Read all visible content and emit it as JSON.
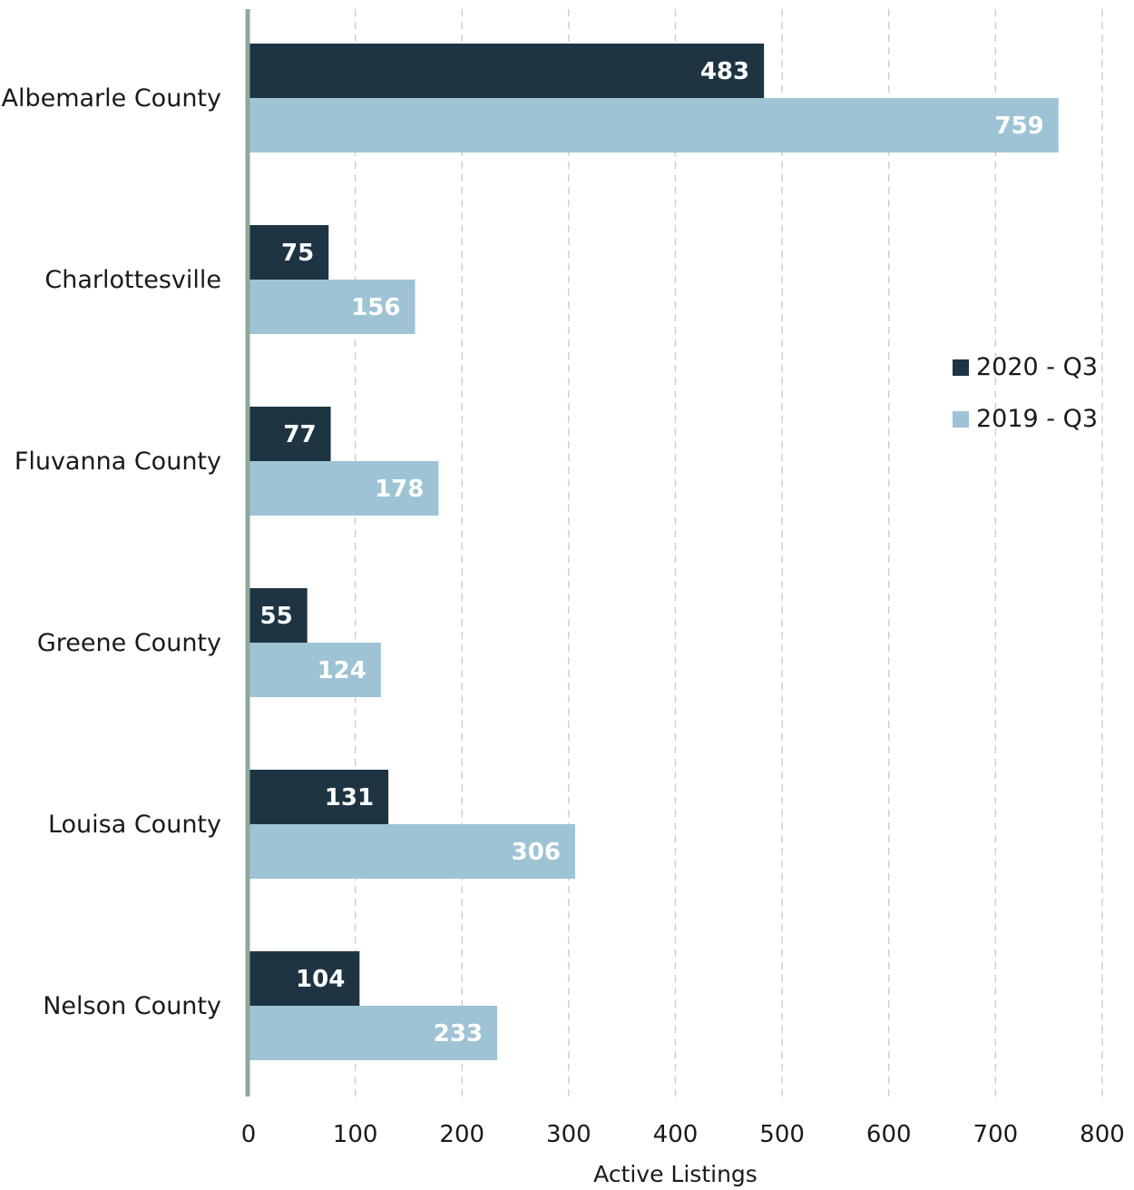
{
  "chart_data": {
    "type": "bar",
    "orientation": "horizontal",
    "categories": [
      "Albemarle County",
      "Charlottesville",
      "Fluvanna County",
      "Greene County",
      "Louisa County",
      "Nelson County"
    ],
    "series": [
      {
        "name": "2020 - Q3",
        "color": "#1e3442",
        "values": [
          483,
          75,
          77,
          55,
          131,
          104
        ]
      },
      {
        "name": "2019 - Q3",
        "color": "#9dc3d5",
        "values": [
          759,
          156,
          178,
          124,
          306,
          233
        ]
      }
    ],
    "title": "",
    "xlabel": "Active Listings",
    "ylabel": "",
    "xlim": [
      0,
      800
    ],
    "xticks": [
      0,
      100,
      200,
      300,
      400,
      500,
      600,
      700,
      800
    ],
    "grid": "vertical-dashed",
    "legend_position": "right",
    "data_labels": true
  }
}
